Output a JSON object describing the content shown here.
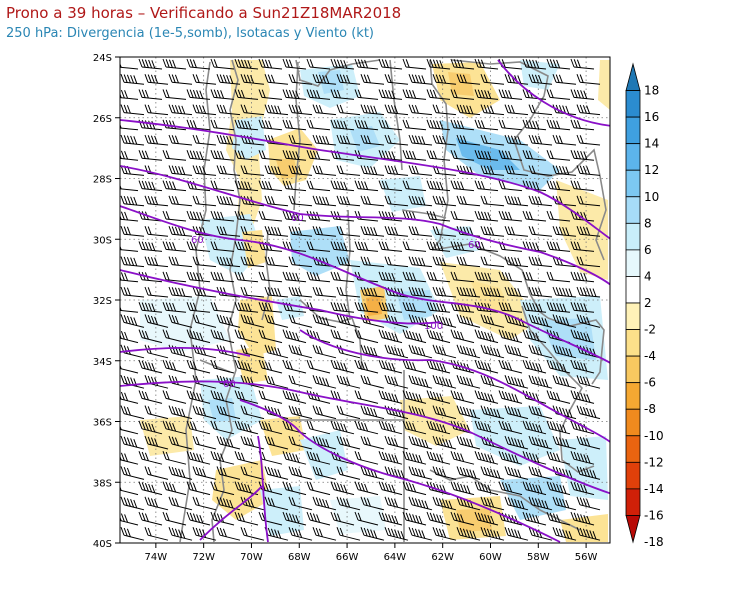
{
  "header": {
    "title": "Prono a 39 horas – Verificando a Sun21Z18MAR2018",
    "subtitle": "250 hPa: Divergencia (1e-5,somb), Isotacas y Viento (kt)"
  },
  "map": {
    "lat_range": [
      -40,
      -24
    ],
    "lon_range": [
      -75.5,
      -55
    ],
    "lat_ticks": [
      "24S",
      "26S",
      "28S",
      "30S",
      "32S",
      "34S",
      "36S",
      "38S",
      "40S"
    ],
    "lon_ticks": [
      "74W",
      "72W",
      "70W",
      "68W",
      "66W",
      "64W",
      "62W",
      "60W",
      "58W",
      "56W"
    ],
    "isotach_labels": [
      "60",
      "60",
      "60",
      "100",
      "60"
    ],
    "isotach_color": "#8a10c8",
    "border_color": "#8a8a8a"
  },
  "colorbar": {
    "labels": [
      "18",
      "16",
      "14",
      "12",
      "10",
      "8",
      "6",
      "4",
      "2",
      "-2",
      "-4",
      "-6",
      "-8",
      "-10",
      "-12",
      "-14",
      "-16",
      "-18"
    ],
    "colors": [
      "#1f78b4",
      "#2b8cd0",
      "#3fa0e0",
      "#5cb4ec",
      "#7cc8f2",
      "#a6dcf8",
      "#c8eefa",
      "#e6f8fc",
      "#ffffff",
      "#fff2b8",
      "#fce08a",
      "#f8c860",
      "#f5a832",
      "#f08a1e",
      "#ea6410",
      "#e0400a",
      "#d02008",
      "#b80a06"
    ]
  }
}
